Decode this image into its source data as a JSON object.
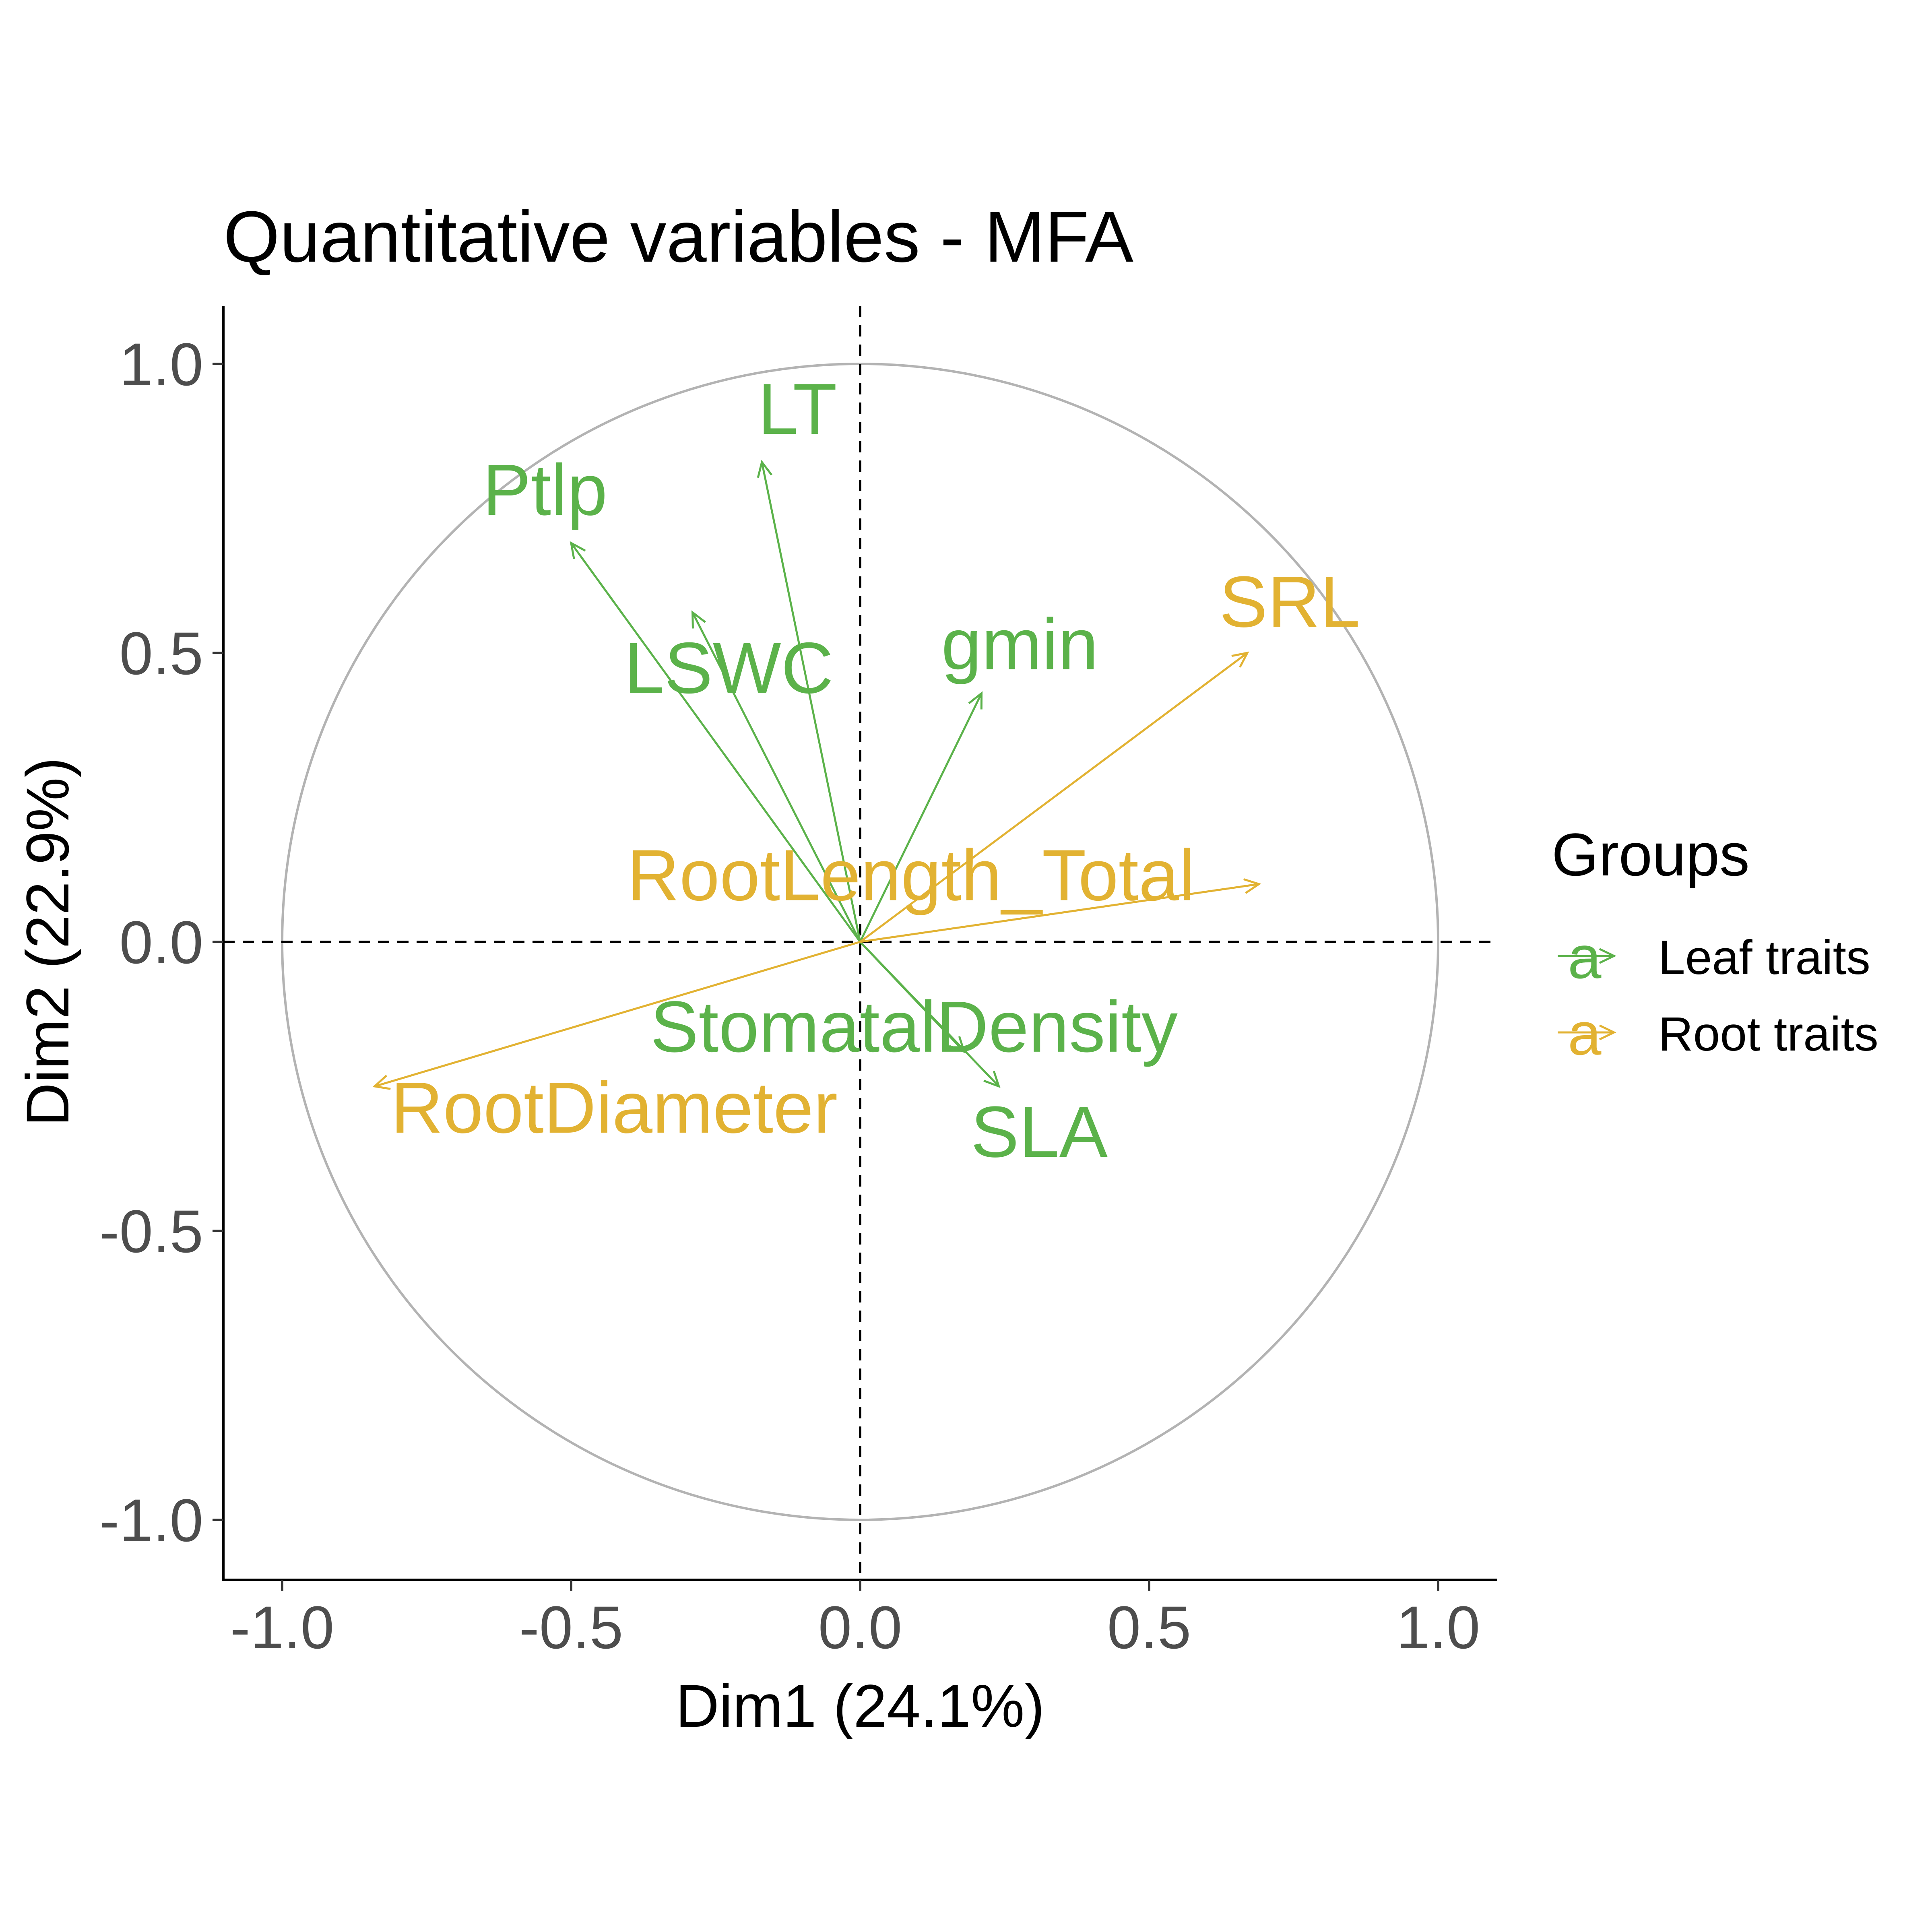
{
  "chart_data": {
    "type": "scatter",
    "subtype": "variable-correlation-circle",
    "title": "Quantitative variables - MFA",
    "xlabel": "Dim1 (24.1%)",
    "ylabel": "Dim2 (22.9%)",
    "xlim": [
      -1.1,
      1.1
    ],
    "ylim": [
      -1.1,
      1.1
    ],
    "xticks": [
      -1.0,
      -0.5,
      0.0,
      0.5,
      1.0
    ],
    "yticks": [
      -1.0,
      -0.5,
      0.0,
      0.5,
      1.0
    ],
    "xtick_labels": [
      "-1.0",
      "-0.5",
      "0.0",
      "0.5",
      "1.0"
    ],
    "ytick_labels": [
      "-1.0",
      "-0.5",
      "0.0",
      "0.5",
      "1.0"
    ],
    "grid": false,
    "reference_lines": {
      "x": 0,
      "y": 0,
      "style": "dashed"
    },
    "unit_circle": true,
    "legend": {
      "title": "Groups",
      "position": "right",
      "glyph": "a",
      "entries": [
        {
          "name": "Leaf traits",
          "color": "#5BB24A"
        },
        {
          "name": "Root traits",
          "color": "#E2B232"
        }
      ]
    },
    "colors": {
      "Leaf traits": "#5BB24A",
      "Root traits": "#E2B232",
      "circle": "#B3B3B3"
    },
    "variables": [
      {
        "name": "LT",
        "group": "Leaf traits",
        "x": -0.17,
        "y": 0.83
      },
      {
        "name": "Ptlp",
        "group": "Leaf traits",
        "x": -0.5,
        "y": 0.69
      },
      {
        "name": "LSWC",
        "group": "Leaf traits",
        "x": -0.29,
        "y": 0.57
      },
      {
        "name": "gmin",
        "group": "Leaf traits",
        "x": 0.21,
        "y": 0.43
      },
      {
        "name": "StomatalDensity",
        "group": "Leaf traits",
        "x": 0.18,
        "y": -0.19
      },
      {
        "name": "SLA",
        "group": "Leaf traits",
        "x": 0.24,
        "y": -0.25
      },
      {
        "name": "SRL",
        "group": "Root traits",
        "x": 0.67,
        "y": 0.5
      },
      {
        "name": "RootLength_Total",
        "group": "Root traits",
        "x": 0.69,
        "y": 0.1
      },
      {
        "name": "RootDiameter",
        "group": "Root traits",
        "x": -0.84,
        "y": -0.25
      }
    ]
  }
}
